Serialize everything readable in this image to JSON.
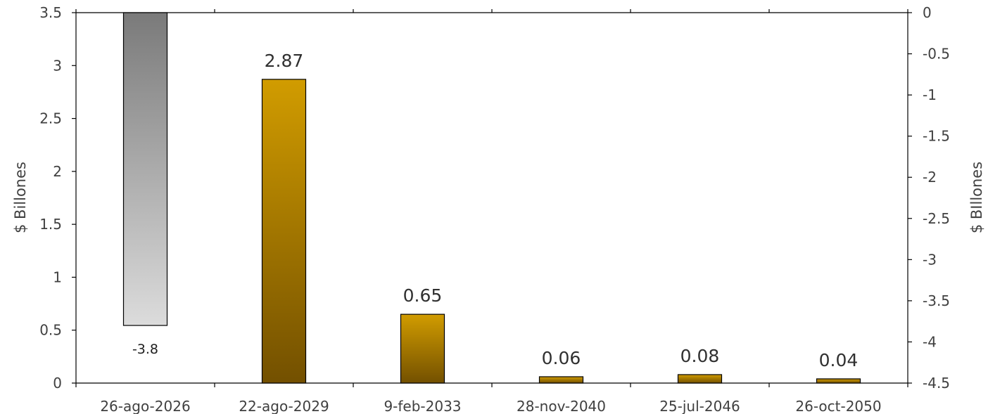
{
  "chart_data": {
    "type": "bar",
    "categories": [
      "26-ago-2026",
      "22-ago-2029",
      "9-feb-2033",
      "28-nov-2040",
      "25-jul-2046",
      "26-oct-2050"
    ],
    "series": [
      {
        "axis": "right",
        "color_top": "#7a7a7a",
        "color_bottom": "#dcdcdc",
        "values": [
          -3.8,
          null,
          null,
          null,
          null,
          null
        ],
        "labels": [
          "-3.8",
          "",
          "",
          "",
          "",
          ""
        ]
      },
      {
        "axis": "left",
        "color_top": "#d19c00",
        "color_bottom": "#735000",
        "values": [
          null,
          2.87,
          0.65,
          0.06,
          0.08,
          0.04
        ],
        "labels": [
          "",
          "2.87",
          "0.65",
          "0.06",
          "0.08",
          "0.04"
        ]
      }
    ],
    "ylabel": "$ Billones",
    "ylabel_right": "$ BIllones",
    "ylim": [
      0,
      3.5
    ],
    "ylim_right": [
      -4.5,
      0
    ],
    "left_ticks": [
      "0",
      "0.5",
      "1",
      "1.5",
      "2",
      "2.5",
      "3",
      "3.5"
    ],
    "right_ticks": [
      "0",
      "-0.5",
      "-1",
      "-1.5",
      "-2",
      "-2.5",
      "-3",
      "-3.5",
      "-4",
      "-4.5"
    ],
    "grid": false,
    "legend": "none"
  }
}
